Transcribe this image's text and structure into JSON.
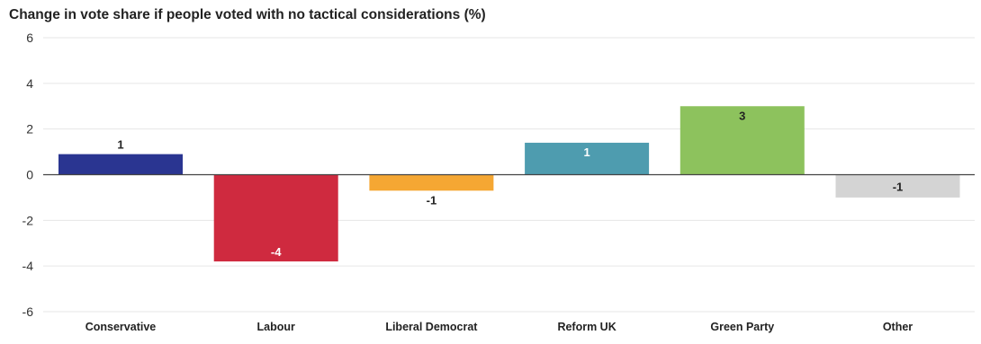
{
  "chart_data": {
    "type": "bar",
    "title": "Change in vote share if people voted with no tactical considerations (%)",
    "categories": [
      "Conservative",
      "Labour",
      "Liberal Democrat",
      "Reform UK",
      "Green Party",
      "Other"
    ],
    "values": [
      0.9,
      -3.8,
      -0.7,
      1.4,
      3.0,
      -1.0
    ],
    "data_labels": [
      "1",
      "-4",
      "-1",
      "1",
      "3",
      "-1"
    ],
    "colors": [
      "#2a3591",
      "#cf2a3f",
      "#f5a733",
      "#4e9caf",
      "#8dc25d",
      "#d4d4d4"
    ],
    "label_colors": [
      "#222222",
      "#ffffff",
      "#222222",
      "#ffffff",
      "#222222",
      "#222222"
    ],
    "yticks": [
      "6",
      "4",
      "2",
      "0",
      "-2",
      "-4",
      "-6"
    ],
    "ytick_values": [
      6,
      4,
      2,
      0,
      -2,
      -4,
      -6
    ],
    "ylim": [
      -6,
      6
    ],
    "grid": true,
    "xlabel": "",
    "ylabel": ""
  }
}
